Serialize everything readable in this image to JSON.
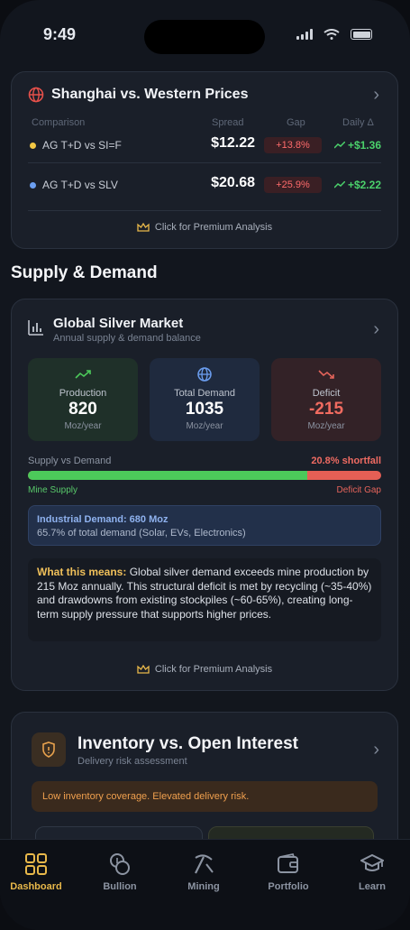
{
  "status_bar": {
    "time": "9:49"
  },
  "shanghai_card": {
    "title": "Shanghai vs. Western Prices",
    "icon": "globe-icon",
    "columns": [
      "Comparison",
      "Spread",
      "Gap",
      "Daily Δ"
    ],
    "rows": [
      {
        "label": "AG T+D vs SI=F",
        "dot_color": "#f2c744",
        "spread": "$12.22",
        "gap": "+13.8%",
        "daily": "+$1.36"
      },
      {
        "label": "AG T+D vs SLV",
        "dot_color": "#6b9ef0",
        "spread": "$20.68",
        "gap": "+25.9%",
        "daily": "+$2.22"
      }
    ],
    "premium_label": "Click for Premium Analysis"
  },
  "supply_demand": {
    "section_title": "Supply & Demand",
    "card_title": "Global Silver Market",
    "card_subtitle": "Annual supply & demand balance",
    "stats": [
      {
        "label": "Production",
        "value": "820",
        "unit": "Moz/year",
        "icon": "trend-up-icon"
      },
      {
        "label": "Total Demand",
        "value": "1035",
        "unit": "Moz/year",
        "icon": "globe-icon"
      },
      {
        "label": "Deficit",
        "value": "-215",
        "unit": "Moz/year",
        "icon": "trend-down-icon"
      }
    ],
    "bar_label": "Supply vs Demand",
    "shortfall": "20.8% shortfall",
    "supply_fraction": 0.792,
    "bar_left_label": "Mine Supply",
    "bar_right_label": "Deficit Gap",
    "industrial_title": "Industrial Demand: 680 Moz",
    "industrial_sub": "65.7% of total demand (Solar, EVs, Electronics)",
    "means_key": "What this means:",
    "means_text": " Global silver demand exceeds mine production by 215 Moz annually. This structural deficit is met by recycling (~35-40%) and drawdowns from existing stockpiles (~60-65%), creating long-term supply pressure that supports higher prices.",
    "premium_label": "Click for Premium Analysis"
  },
  "inventory_card": {
    "title": "Inventory vs. Open Interest",
    "subtitle": "Delivery risk assessment",
    "warning": "Low inventory coverage. Elevated delivery risk."
  },
  "tabs": [
    {
      "label": "Dashboard",
      "icon": "dashboard-icon",
      "active": true
    },
    {
      "label": "Bullion",
      "icon": "coins-icon",
      "active": false
    },
    {
      "label": "Mining",
      "icon": "pickaxe-icon",
      "active": false
    },
    {
      "label": "Portfolio",
      "icon": "wallet-icon",
      "active": false
    },
    {
      "label": "Learn",
      "icon": "graduation-cap-icon",
      "active": false
    }
  ],
  "colors": {
    "accent": "#e8b84a",
    "positive": "#4bd16b",
    "negative": "#ff6b6b",
    "card": "#1a1f29"
  }
}
